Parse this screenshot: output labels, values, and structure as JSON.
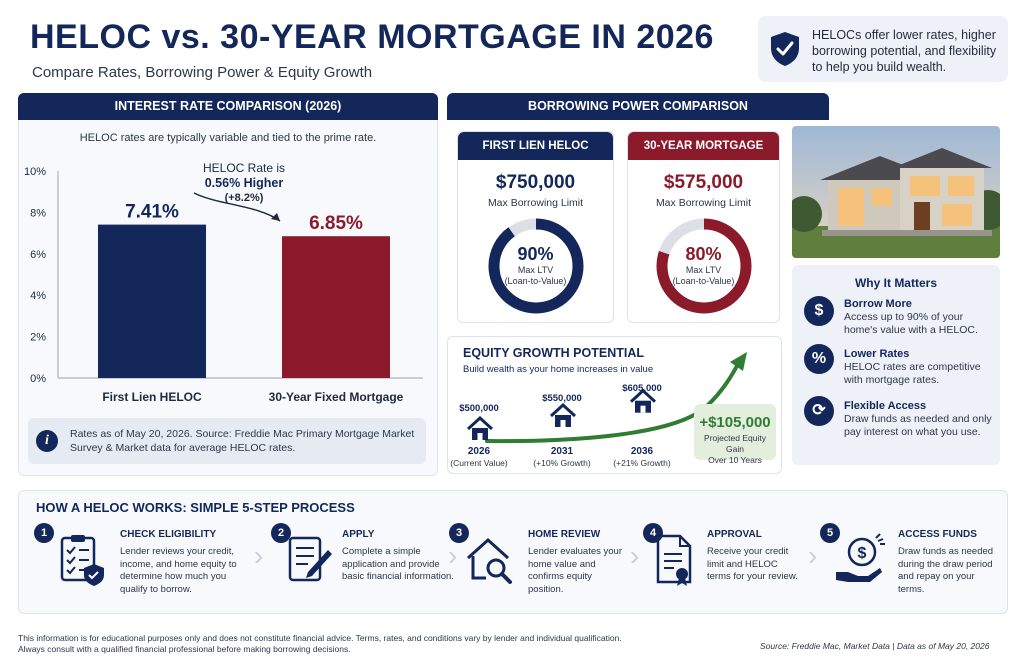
{
  "header": {
    "title": "HELOC vs. 30-YEAR MORTGAGE IN 2026",
    "subtitle": "Compare Rates, Borrowing Power & Equity Growth",
    "callout": "HELOCs offer lower rates, higher borrowing potential, and flexibility to help you build wealth."
  },
  "rate_section": {
    "heading": "INTEREST RATE COMPARISON (2026)",
    "note": "HELOC rates are typically variable and tied to the prime rate.",
    "annotation_line1": "HELOC Rate is",
    "annotation_line2": "0.56% Higher",
    "annotation_line3": "(+8.2%)",
    "info": "Rates as of May 20, 2026. Source: Freddie Mac Primary Mortgage Market Survey & Market data for average HELOC rates."
  },
  "chart_data": [
    {
      "type": "bar",
      "title": "INTEREST RATE COMPARISON (2026)",
      "categories": [
        "First Lien HELOC",
        "30-Year Fixed Mortgage"
      ],
      "values": [
        7.41,
        6.85
      ],
      "value_labels": [
        "7.41%",
        "6.85%"
      ],
      "colors": [
        "#13275a",
        "#8b1a2b"
      ],
      "ylim": [
        0,
        10
      ],
      "yticks": [
        "0%",
        "2%",
        "4%",
        "6%",
        "8%",
        "10%"
      ],
      "ytick_values": [
        0,
        2,
        4,
        6,
        8,
        10
      ],
      "xlabel": "",
      "ylabel": "",
      "grid": false
    },
    {
      "type": "line",
      "title": "EQUITY GROWTH POTENTIAL",
      "subtitle": "Build wealth as your home increases in value",
      "x": [
        "2026",
        "2031",
        "2036"
      ],
      "x_notes": [
        "(Current Value)",
        "(+10% Growth)",
        "(+21% Growth)"
      ],
      "values": [
        500000,
        550000,
        605000
      ],
      "value_labels": [
        "$500,000",
        "$550,000",
        "$605,000"
      ],
      "color": "#2e7d32"
    }
  ],
  "borrow_section": {
    "heading": "BORROWING POWER COMPARISON",
    "heloc": {
      "title": "FIRST LIEN HELOC",
      "amount": "$750,000",
      "amount_label": "Max Borrowing Limit",
      "ltv": 0.9,
      "ltv_label": "90%",
      "ltv_desc1": "Max LTV",
      "ltv_desc2": "(Loan-to-Value)"
    },
    "mortgage": {
      "title": "30-YEAR MORTGAGE",
      "amount": "$575,000",
      "amount_label": "Max Borrowing Limit",
      "ltv": 0.8,
      "ltv_label": "80%",
      "ltv_desc1": "Max LTV",
      "ltv_desc2": "(Loan-to-Value)"
    }
  },
  "equity_section": {
    "title": "EQUITY GROWTH POTENTIAL",
    "subtitle": "Build wealth as your home increases in value",
    "points": [
      {
        "value": "$500,000",
        "year": "2026",
        "note": "(Current Value)"
      },
      {
        "value": "$550,000",
        "year": "2031",
        "note": "(+10% Growth)"
      },
      {
        "value": "$605,000",
        "year": "2036",
        "note": "(+21% Growth)"
      }
    ],
    "gain_value": "+$105,000",
    "gain_label1": "Projected Equity Gain",
    "gain_label2": "Over 10 Years"
  },
  "why": {
    "title": "Why It Matters",
    "items": [
      {
        "icon": "dollar-icon",
        "glyph": "$",
        "heading": "Borrow More",
        "desc": "Access up to 90% of your home's value with a HELOC."
      },
      {
        "icon": "percent-icon",
        "glyph": "%",
        "heading": "Lower Rates",
        "desc": "HELOC rates are competitive with mortgage rates."
      },
      {
        "icon": "refresh-icon",
        "glyph": "⟳",
        "heading": "Flexible Access",
        "desc": "Draw funds as needed and only pay interest on what you use."
      }
    ]
  },
  "steps": {
    "title": "HOW A HELOC WORKS: SIMPLE 5-STEP PROCESS",
    "items": [
      {
        "num": "1",
        "icon": "clipboard-shield-icon",
        "heading": "CHECK ELIGIBILITY",
        "desc": "Lender reviews your credit, income, and home equity to determine how much you qualify to borrow."
      },
      {
        "num": "2",
        "icon": "document-pen-icon",
        "heading": "APPLY",
        "desc": "Complete a simple application and provide basic financial information."
      },
      {
        "num": "3",
        "icon": "house-search-icon",
        "heading": "HOME REVIEW",
        "desc": "Lender evaluates your home value and confirms equity position."
      },
      {
        "num": "4",
        "icon": "certificate-icon",
        "heading": "APPROVAL",
        "desc": "Receive your credit limit and HELOC terms for your review."
      },
      {
        "num": "5",
        "icon": "money-hand-icon",
        "heading": "ACCESS FUNDS",
        "desc": "Draw funds as needed during the draw period and repay on your terms."
      }
    ]
  },
  "footer": {
    "disclaimer1": "This information is for educational purposes only and does not constitute financial advice. Terms, rates, and conditions vary by lender and individual qualification.",
    "disclaimer2": "Always consult with a qualified financial professional before making borrowing decisions.",
    "source": "Source: Freddie Mac, Market Data  |  Data as of May 20, 2026"
  }
}
